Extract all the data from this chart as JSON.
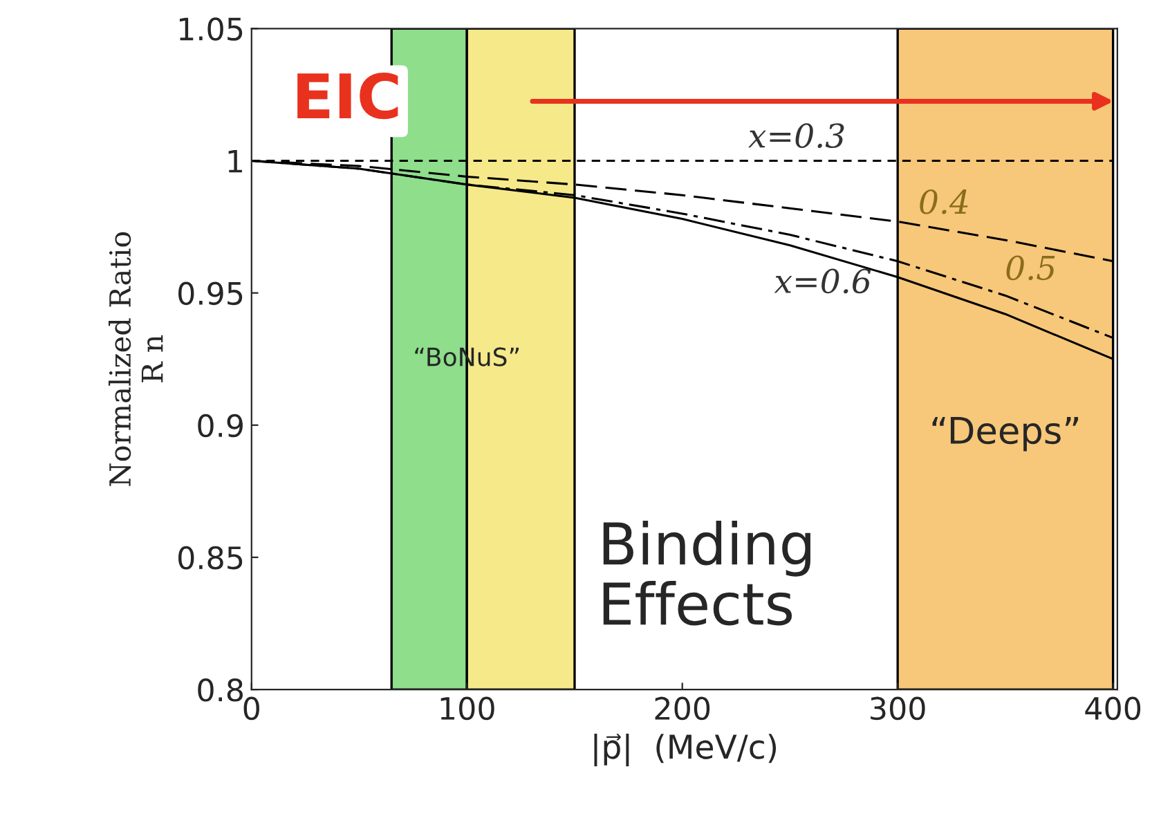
{
  "chart_data": {
    "type": "line",
    "xlabel": "|p⃗|  (MeV/c)",
    "ylabel": "Normalized Ratio\nR n",
    "x": [
      0,
      50,
      100,
      150,
      200,
      250,
      300,
      350,
      400
    ],
    "series": [
      {
        "name": "x=0.3",
        "color": "#000000",
        "line_style": "dotted",
        "values": [
          1.0,
          1.0,
          1.0,
          1.0,
          1.0,
          1.0,
          1.0,
          1.0,
          1.0
        ]
      },
      {
        "name": "0.4",
        "color": "#000000",
        "line_style": "dashed",
        "values": [
          1.0,
          0.998,
          0.994,
          0.991,
          0.987,
          0.982,
          0.977,
          0.97,
          0.962
        ]
      },
      {
        "name": "0.5",
        "color": "#000000",
        "line_style": "dashdot",
        "values": [
          1.0,
          0.997,
          0.991,
          0.987,
          0.98,
          0.972,
          0.962,
          0.949,
          0.933
        ]
      },
      {
        "name": "x=0.6",
        "color": "#000000",
        "line_style": "solid",
        "values": [
          1.0,
          0.997,
          0.991,
          0.986,
          0.978,
          0.968,
          0.956,
          0.942,
          0.925
        ]
      }
    ],
    "xlim": [
      0,
      402
    ],
    "ylim": [
      0.8,
      1.05
    ],
    "xticks": [
      0,
      100,
      200,
      300,
      400
    ],
    "yticks": [
      0.8,
      0.85,
      0.9,
      0.95,
      1,
      1.05
    ],
    "bands": [
      {
        "axis": "x",
        "from": 65,
        "to": 100,
        "color": "#8ede8c"
      },
      {
        "axis": "x",
        "from": 100,
        "to": 150,
        "color": "#f5e98a"
      },
      {
        "axis": "x",
        "from": 300,
        "to": 400,
        "color": "#f7c77a",
        "label": "“Deeps”"
      }
    ],
    "annotations": [
      "EIC",
      {
        "text": "“BoNuS”",
        "x": 100,
        "y": 0.925
      },
      "Binding\nEffects"
    ],
    "grid": false,
    "legend": false
  }
}
